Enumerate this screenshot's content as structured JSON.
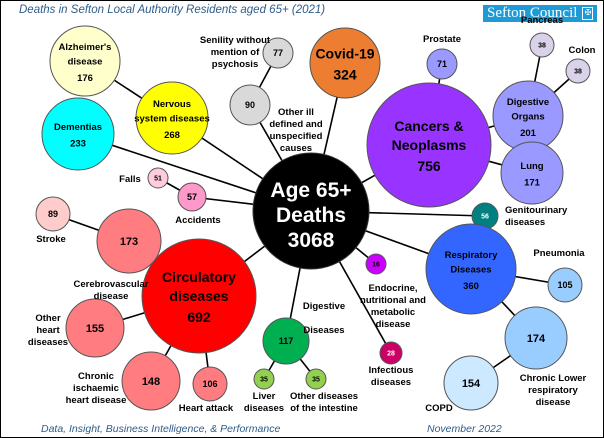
{
  "header": {
    "title": "Deaths in Sefton Local Authority Residents aged 65+ (2021)",
    "brand": "Sefton Council"
  },
  "footer": {
    "left": "Data, Insight, Business Intelligence, & Performance",
    "right": "November 2022"
  },
  "center": {
    "id": "center",
    "lines": [
      "Age 65+",
      "Deaths",
      "3068"
    ],
    "value": 3068,
    "color": "#000000"
  },
  "nodes": [
    {
      "id": "covid",
      "parent": "center",
      "label": "Covid-19",
      "value": 324,
      "color": "#ED7D31"
    },
    {
      "id": "cancers",
      "parent": "center",
      "label": "Cancers & Neoplasms",
      "value": 756,
      "color": "#9933FF"
    },
    {
      "id": "prostate",
      "parent": "cancers",
      "label": "Prostate",
      "value": 71,
      "color": "#9999FF"
    },
    {
      "id": "digorg",
      "parent": "cancers",
      "label": "Digestive Organs",
      "value": 201,
      "color": "#9999FF"
    },
    {
      "id": "pancreas",
      "parent": "digorg",
      "label": "Pancreas",
      "value": 38,
      "color": "#D9D2E9"
    },
    {
      "id": "colon",
      "parent": "digorg",
      "label": "Colon",
      "value": 38,
      "color": "#D9D2E9"
    },
    {
      "id": "lung",
      "parent": "cancers",
      "label": "Lung",
      "value": 171,
      "color": "#9999FF"
    },
    {
      "id": "genito",
      "parent": "center",
      "label": "Genitourinary diseases",
      "value": 56,
      "color": "#008080"
    },
    {
      "id": "resp",
      "parent": "center",
      "label": "Respiratory Diseases",
      "value": 360,
      "color": "#3366FF"
    },
    {
      "id": "pneu",
      "parent": "resp",
      "label": "Pneumonia",
      "value": 105,
      "color": "#99CCFF"
    },
    {
      "id": "clrd",
      "parent": "resp",
      "label": "Chronic Lower respiratory disease",
      "value": 174,
      "color": "#99CCFF"
    },
    {
      "id": "copd",
      "parent": "clrd",
      "label": "COPD",
      "value": 154,
      "color": "#CCE9FF"
    },
    {
      "id": "endo",
      "parent": "center",
      "label": "Endocrine, nutritional and metabolic disease",
      "value": 16,
      "color": "#CC00FF"
    },
    {
      "id": "infect",
      "parent": "center",
      "label": "Infectious diseases",
      "value": 28,
      "color": "#CC0066"
    },
    {
      "id": "digest",
      "parent": "center",
      "label": "Digestive Diseases",
      "value": 117,
      "color": "#00B050"
    },
    {
      "id": "liver",
      "parent": "digest",
      "label": "Liver diseases",
      "value": 35,
      "color": "#92D050"
    },
    {
      "id": "intest",
      "parent": "digest",
      "label": "Other diseases of the intestine",
      "value": 35,
      "color": "#92D050"
    },
    {
      "id": "circ",
      "parent": "center",
      "label": "Circulatory diseases",
      "value": 692,
      "color": "#FF0000"
    },
    {
      "id": "heartattack",
      "parent": "circ",
      "label": "Heart attack",
      "value": 106,
      "color": "#FF7C80"
    },
    {
      "id": "ischaemic",
      "parent": "circ",
      "label": "Chronic ischaemic heart disease",
      "value": 148,
      "color": "#FF7C80"
    },
    {
      "id": "otherheart",
      "parent": "circ",
      "label": "Other heart diseases",
      "value": 155,
      "color": "#FF7C80"
    },
    {
      "id": "cerebro",
      "parent": "circ",
      "label": "Cerebrovascular disease",
      "value": 173,
      "color": "#FF7C80"
    },
    {
      "id": "stroke",
      "parent": "cerebro",
      "label": "Stroke",
      "value": 89,
      "color": "#FFCCCC"
    },
    {
      "id": "accidents",
      "parent": "center",
      "label": "Accidents",
      "value": 57,
      "color": "#FF99CC"
    },
    {
      "id": "falls",
      "parent": "accidents",
      "label": "Falls",
      "value": 51,
      "color": "#FFCCDD"
    },
    {
      "id": "dementias",
      "parent": "center",
      "label": "Dementias",
      "value": 233,
      "color": "#00FFFF"
    },
    {
      "id": "nervous",
      "parent": "center",
      "label": "Nervous system diseases",
      "value": 268,
      "color": "#FFFF00"
    },
    {
      "id": "alz",
      "parent": "nervous",
      "label": "Alzheimer's disease",
      "value": 176,
      "color": "#FFFFCC"
    },
    {
      "id": "illdef",
      "parent": "center",
      "label": "Other ill defined and unspecified causes",
      "value": 90,
      "color": "#D9D9D9"
    },
    {
      "id": "senility",
      "parent": "illdef",
      "label": "Senility without mention of psychosis",
      "value": 77,
      "color": "#D9D9D9"
    }
  ]
}
